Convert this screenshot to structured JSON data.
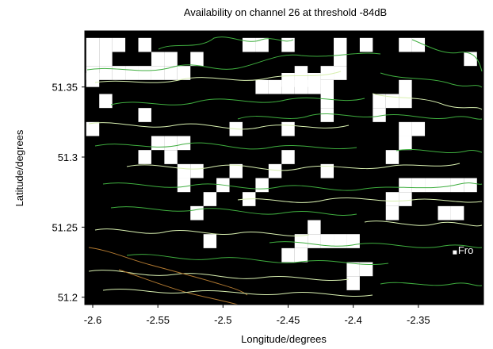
{
  "chart_data": {
    "type": "heatmap",
    "title": "Availability on channel 26 at threshold -84dB",
    "xlabel": "Longitude/degrees",
    "ylabel": "Latitude/degrees",
    "xlim": [
      -2.6,
      -2.3
    ],
    "ylim": [
      51.197,
      51.39
    ],
    "xticks": [
      -2.6,
      -2.55,
      -2.5,
      -2.45,
      -2.4,
      -2.35
    ],
    "yticks": [
      51.2,
      51.25,
      51.3,
      51.35
    ],
    "xtick_labels": [
      "-2.6",
      "-2.55",
      "-2.5",
      "-2.45",
      "-2.4",
      "-2.35"
    ],
    "ytick_labels": [
      "51.2",
      "51.25",
      "51.3",
      "51.35"
    ],
    "grid": false,
    "legend": "none",
    "cell_size_deg": 0.01,
    "colors": {
      "unavailable": "#000000",
      "available": "#ffffff",
      "contour_high": "#3fae3f",
      "contour_mid": "#d8f0b0",
      "contour_low": "#b07830",
      "marker": "#ffffff"
    },
    "available_cells": [
      [
        -2.6,
        51.38
      ],
      [
        -2.59,
        51.38
      ],
      [
        -2.58,
        51.38
      ],
      [
        -2.56,
        51.38
      ],
      [
        -2.48,
        51.38
      ],
      [
        -2.47,
        51.38
      ],
      [
        -2.45,
        51.38
      ],
      [
        -2.41,
        51.38
      ],
      [
        -2.39,
        51.38
      ],
      [
        -2.36,
        51.38
      ],
      [
        -2.35,
        51.38
      ],
      [
        -2.6,
        51.37
      ],
      [
        -2.59,
        51.37
      ],
      [
        -2.55,
        51.37
      ],
      [
        -2.54,
        51.37
      ],
      [
        -2.52,
        51.37
      ],
      [
        -2.41,
        51.37
      ],
      [
        -2.31,
        51.37
      ],
      [
        -2.6,
        51.36
      ],
      [
        -2.59,
        51.36
      ],
      [
        -2.58,
        51.36
      ],
      [
        -2.57,
        51.36
      ],
      [
        -2.56,
        51.36
      ],
      [
        -2.55,
        51.36
      ],
      [
        -2.54,
        51.36
      ],
      [
        -2.53,
        51.36
      ],
      [
        -2.44,
        51.36
      ],
      [
        -2.42,
        51.36
      ],
      [
        -2.41,
        51.36
      ],
      [
        -2.6,
        51.355
      ],
      [
        -2.45,
        51.355
      ],
      [
        -2.44,
        51.355
      ],
      [
        -2.43,
        51.355
      ],
      [
        -2.47,
        51.35
      ],
      [
        -2.46,
        51.35
      ],
      [
        -2.45,
        51.35
      ],
      [
        -2.44,
        51.35
      ],
      [
        -2.43,
        51.35
      ],
      [
        -2.42,
        51.35
      ],
      [
        -2.36,
        51.35
      ],
      [
        -2.59,
        51.34
      ],
      [
        -2.42,
        51.34
      ],
      [
        -2.38,
        51.34
      ],
      [
        -2.37,
        51.34
      ],
      [
        -2.36,
        51.34
      ],
      [
        -2.56,
        51.33
      ],
      [
        -2.42,
        51.33
      ],
      [
        -2.38,
        51.33
      ],
      [
        -2.6,
        51.32
      ],
      [
        -2.49,
        51.32
      ],
      [
        -2.45,
        51.32
      ],
      [
        -2.36,
        51.32
      ],
      [
        -2.35,
        51.32
      ],
      [
        -2.55,
        51.31
      ],
      [
        -2.54,
        51.31
      ],
      [
        -2.53,
        51.31
      ],
      [
        -2.36,
        51.31
      ],
      [
        -2.56,
        51.3
      ],
      [
        -2.54,
        51.3
      ],
      [
        -2.45,
        51.3
      ],
      [
        -2.37,
        51.3
      ],
      [
        -2.53,
        51.29
      ],
      [
        -2.52,
        51.29
      ],
      [
        -2.49,
        51.29
      ],
      [
        -2.46,
        51.29
      ],
      [
        -2.42,
        51.29
      ],
      [
        -2.53,
        51.28
      ],
      [
        -2.5,
        51.28
      ],
      [
        -2.47,
        51.28
      ],
      [
        -2.36,
        51.28
      ],
      [
        -2.35,
        51.28
      ],
      [
        -2.34,
        51.28
      ],
      [
        -2.33,
        51.28
      ],
      [
        -2.32,
        51.28
      ],
      [
        -2.31,
        51.28
      ],
      [
        -2.51,
        51.27
      ],
      [
        -2.48,
        51.27
      ],
      [
        -2.37,
        51.27
      ],
      [
        -2.36,
        51.27
      ],
      [
        -2.52,
        51.26
      ],
      [
        -2.37,
        51.26
      ],
      [
        -2.33,
        51.26
      ],
      [
        -2.32,
        51.26
      ],
      [
        -2.43,
        51.25
      ],
      [
        -2.51,
        51.24
      ],
      [
        -2.44,
        51.24
      ],
      [
        -2.43,
        51.24
      ],
      [
        -2.42,
        51.24
      ],
      [
        -2.41,
        51.24
      ],
      [
        -2.4,
        51.24
      ],
      [
        -2.45,
        51.23
      ],
      [
        -2.44,
        51.23
      ],
      [
        -2.4,
        51.22
      ],
      [
        -2.39,
        51.22
      ],
      [
        -2.4,
        51.21
      ]
    ],
    "annotations": [
      {
        "text": "Fro",
        "x": -2.322,
        "y": 51.232,
        "marker": "square"
      }
    ]
  }
}
